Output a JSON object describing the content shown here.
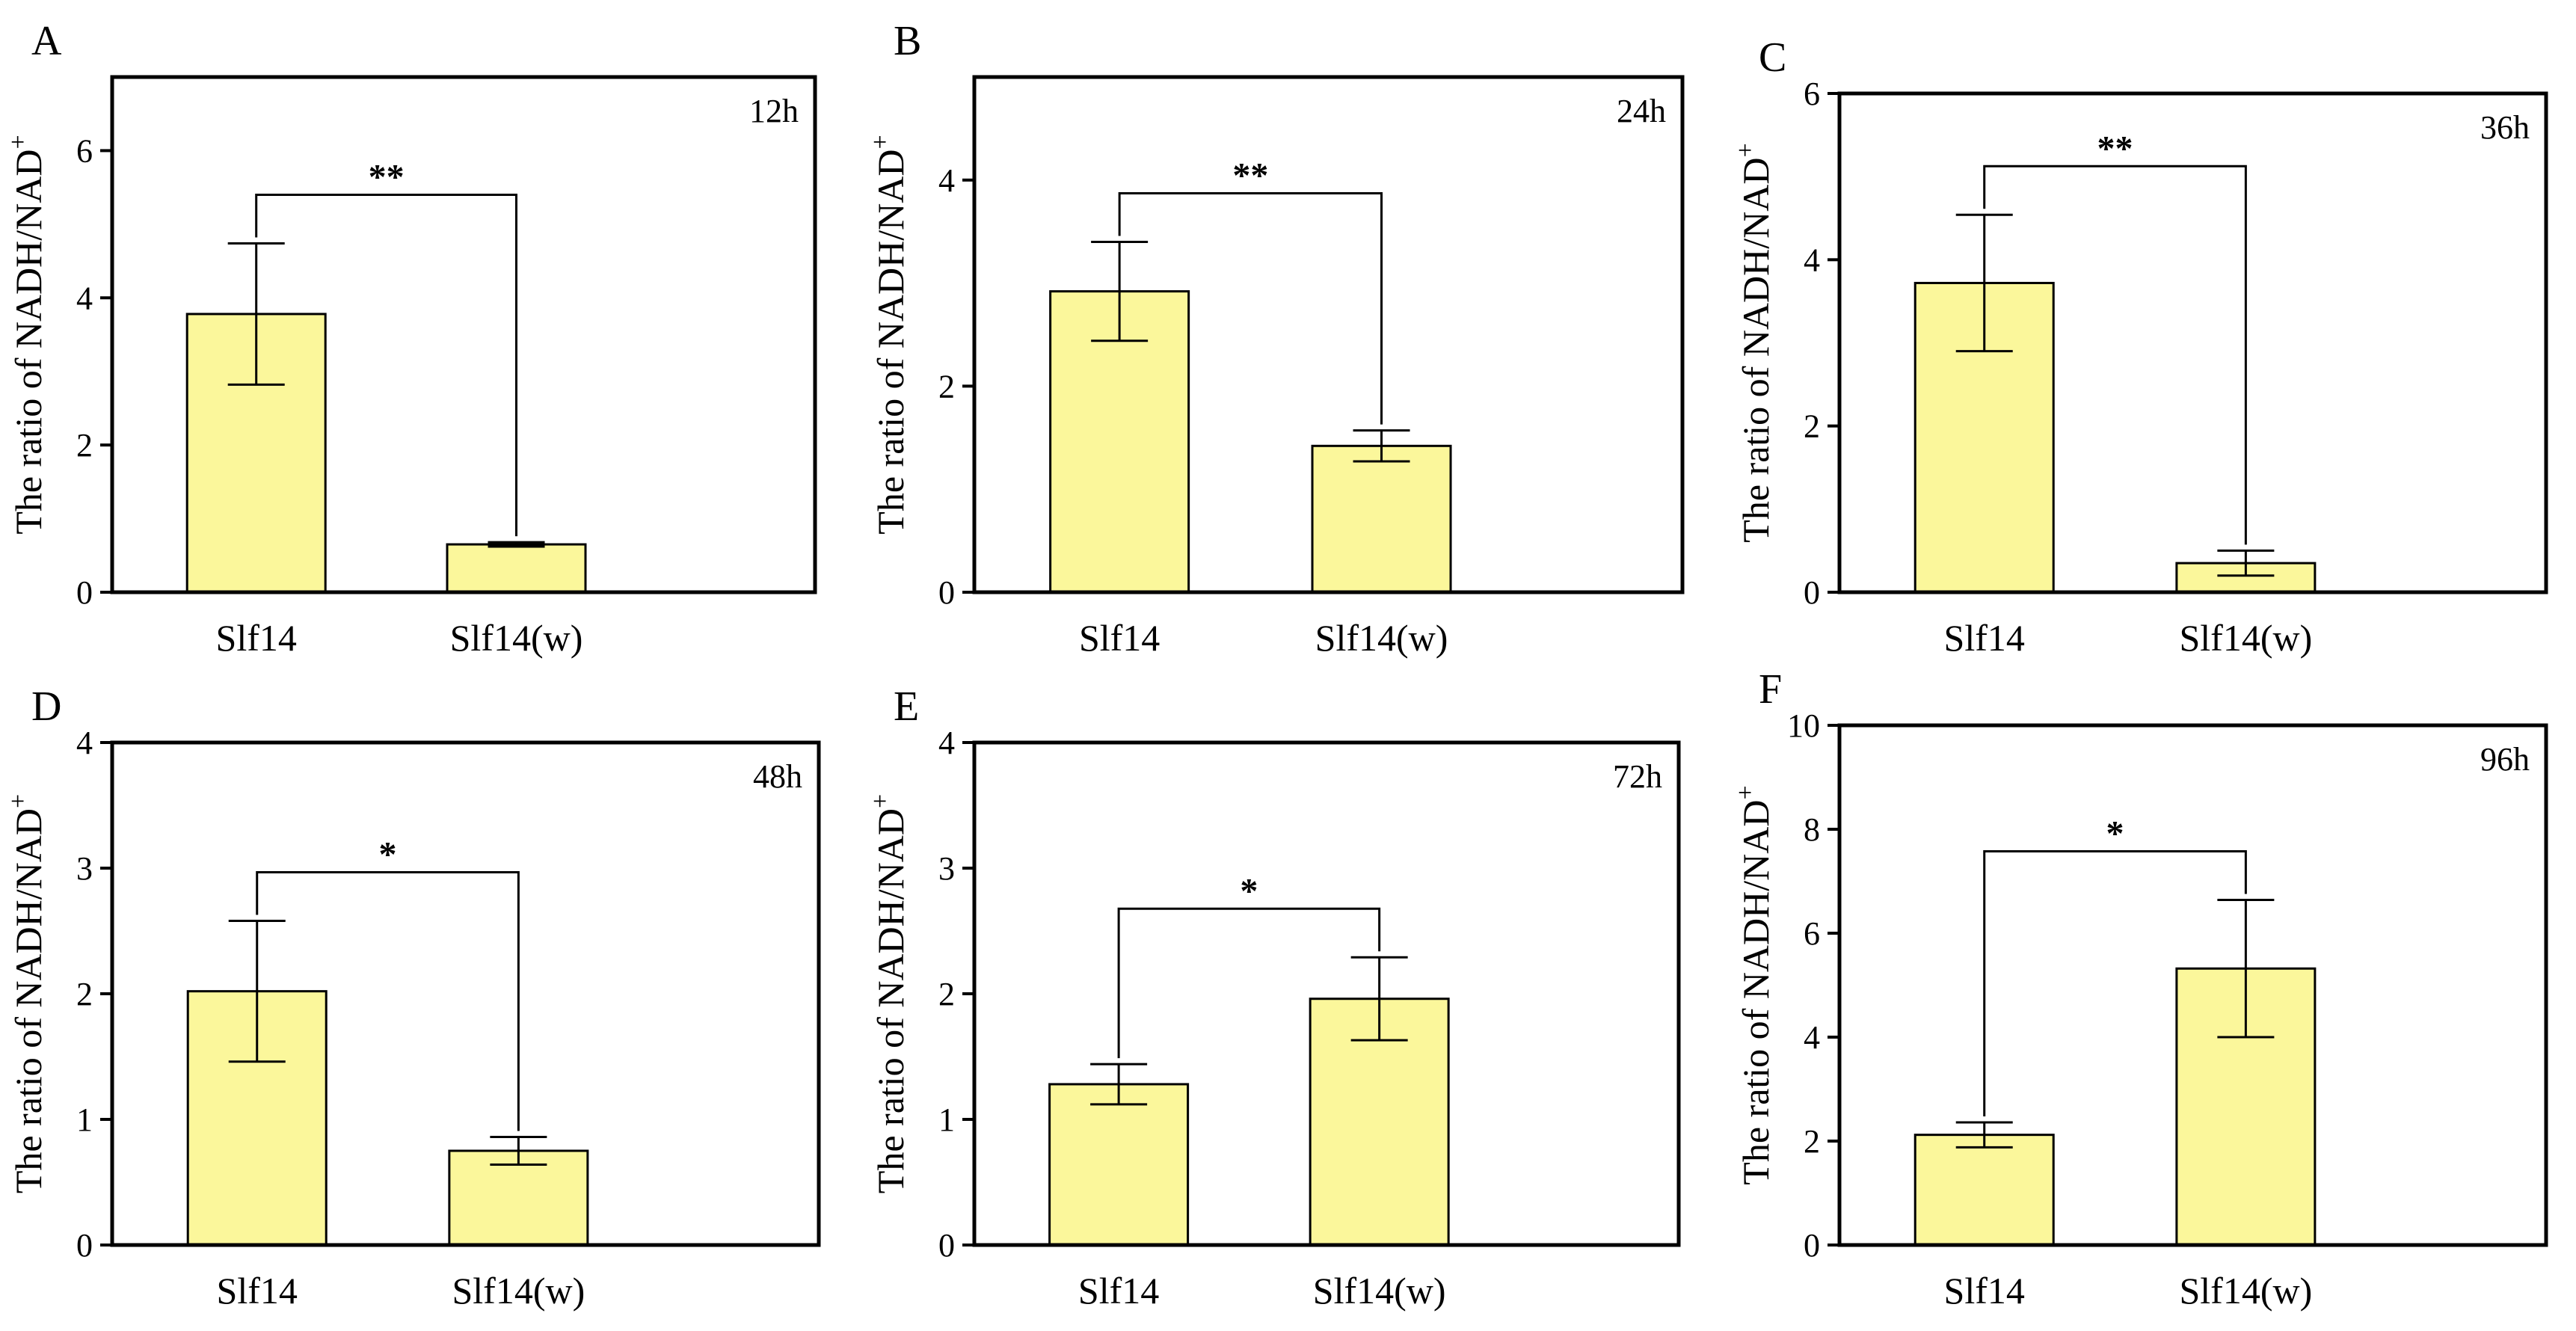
{
  "figure": {
    "bar_color": "#FBF79B",
    "bar_stroke": "#000000"
  },
  "chart_data": [
    {
      "type": "bar",
      "panel": "A",
      "time": "12h",
      "ylabel": "The ratio of NADH/NAD",
      "ylabel_superscript": "+",
      "categories": [
        "Slf14",
        "Slf14(w)"
      ],
      "values": [
        3.78,
        0.65
      ],
      "errors": [
        0.96,
        0.03
      ],
      "ylim": [
        0,
        7
      ],
      "yticks": [
        0,
        2,
        4,
        6
      ],
      "significance": "**"
    },
    {
      "type": "bar",
      "panel": "B",
      "time": "24h",
      "ylabel": "The ratio of NADH/NAD",
      "ylabel_superscript": "+",
      "categories": [
        "Slf14",
        "Slf14(w)"
      ],
      "values": [
        2.92,
        1.42
      ],
      "errors": [
        0.48,
        0.15
      ],
      "ylim": [
        0,
        5
      ],
      "yticks": [
        0,
        2,
        4
      ],
      "significance": "**"
    },
    {
      "type": "bar",
      "panel": "C",
      "time": "36h",
      "ylabel": "The ratio of NADH/NAD",
      "ylabel_superscript": "+",
      "categories": [
        "Slf14",
        "Slf14(w)"
      ],
      "values": [
        3.72,
        0.35
      ],
      "errors": [
        0.82,
        0.15
      ],
      "ylim": [
        0,
        6
      ],
      "yticks": [
        0,
        2,
        4,
        6
      ],
      "significance": "**"
    },
    {
      "type": "bar",
      "panel": "D",
      "time": "48h",
      "ylabel": "The ratio of NADH/NAD",
      "ylabel_superscript": "+",
      "categories": [
        "Slf14",
        "Slf14(w)"
      ],
      "values": [
        2.02,
        0.75
      ],
      "errors": [
        0.56,
        0.11
      ],
      "ylim": [
        0,
        4
      ],
      "yticks": [
        0,
        1,
        2,
        3,
        4
      ],
      "significance": "*"
    },
    {
      "type": "bar",
      "panel": "E",
      "time": "72h",
      "ylabel": "The ratio of NADH/NAD",
      "ylabel_superscript": "+",
      "categories": [
        "Slf14",
        "Slf14(w)"
      ],
      "values": [
        1.28,
        1.96
      ],
      "errors": [
        0.16,
        0.33
      ],
      "ylim": [
        0,
        4
      ],
      "yticks": [
        0,
        1,
        2,
        3,
        4
      ],
      "significance": "*"
    },
    {
      "type": "bar",
      "panel": "F",
      "time": "96h",
      "ylabel": "The ratio of NADH/NAD",
      "ylabel_superscript": "+",
      "categories": [
        "Slf14",
        "Slf14(w)"
      ],
      "values": [
        2.12,
        5.32
      ],
      "errors": [
        0.24,
        1.32
      ],
      "ylim": [
        0,
        10
      ],
      "yticks": [
        0,
        2,
        4,
        6,
        8,
        10
      ],
      "significance": "*"
    }
  ]
}
